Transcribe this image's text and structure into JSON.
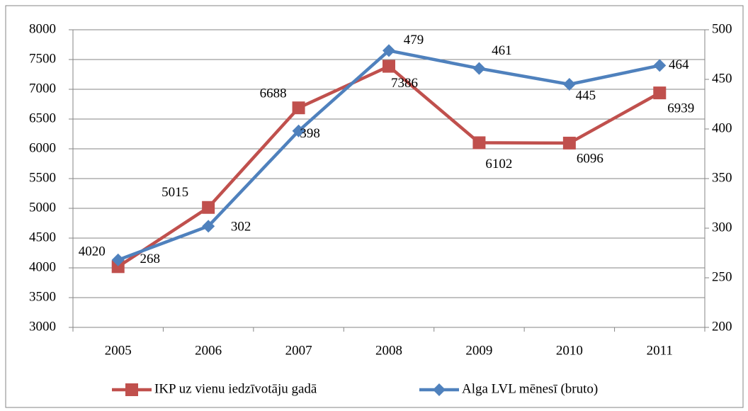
{
  "chart_data": {
    "type": "line",
    "categories": [
      "2005",
      "2006",
      "2007",
      "2008",
      "2009",
      "2010",
      "2011"
    ],
    "series": [
      {
        "name": "IKP uz vienu iedzīvotāju gadā",
        "color": "#c0504d",
        "marker": "square",
        "values": [
          4020,
          5015,
          6688,
          7386,
          6102,
          6096,
          6939
        ]
      },
      {
        "name": "Alga LVL mēnesī (bruto)",
        "color": "#4f81bd",
        "marker": "diamond",
        "axis": "y2",
        "values": [
          268,
          302,
          398,
          479,
          461,
          445,
          464
        ]
      }
    ],
    "ylim": [
      3000,
      8000
    ],
    "yticks": [
      3000,
      3500,
      4000,
      4500,
      5000,
      5500,
      6000,
      6500,
      7000,
      7500,
      8000
    ],
    "y2lim": [
      200,
      500
    ],
    "y2ticks": [
      200,
      250,
      300,
      350,
      400,
      450,
      500
    ],
    "grid": true,
    "legend": "bottom"
  }
}
